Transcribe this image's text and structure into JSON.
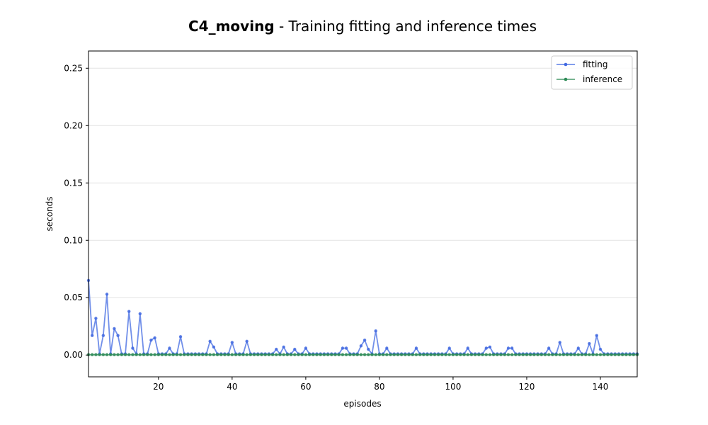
{
  "chart_data": {
    "type": "line",
    "title_bold": "C4_moving",
    "title_rest": " - Training fitting and inference times",
    "xlabel": "episodes",
    "ylabel": "seconds",
    "xlim": [
      1,
      150
    ],
    "ylim": [
      -0.019,
      0.265
    ],
    "xticks": [
      20,
      40,
      60,
      80,
      100,
      120,
      140
    ],
    "yticks": [
      0.0,
      0.05,
      0.1,
      0.15,
      0.2,
      0.25
    ],
    "ytick_labels": [
      "0.00",
      "0.05",
      "0.10",
      "0.15",
      "0.20",
      "0.25"
    ],
    "grid": "horizontal",
    "legend_position": "upper right",
    "series": [
      {
        "name": "fitting",
        "color": "#4169e1",
        "values": [
          0.065,
          0.017,
          0.032,
          0.001,
          0.017,
          0.053,
          0.001,
          0.023,
          0.017,
          0.001,
          0.001,
          0.038,
          0.006,
          0.001,
          0.036,
          0.001,
          0.001,
          0.013,
          0.015,
          0.001,
          0.001,
          0.001,
          0.006,
          0.001,
          0.001,
          0.016,
          0.001,
          0.001,
          0.001,
          0.001,
          0.001,
          0.001,
          0.001,
          0.012,
          0.007,
          0.001,
          0.001,
          0.001,
          0.001,
          0.011,
          0.001,
          0.001,
          0.001,
          0.012,
          0.001,
          0.001,
          0.001,
          0.001,
          0.001,
          0.001,
          0.001,
          0.005,
          0.001,
          0.007,
          0.001,
          0.001,
          0.005,
          0.001,
          0.001,
          0.006,
          0.001,
          0.001,
          0.001,
          0.001,
          0.001,
          0.001,
          0.001,
          0.001,
          0.001,
          0.006,
          0.006,
          0.001,
          0.001,
          0.001,
          0.008,
          0.013,
          0.005,
          0.001,
          0.021,
          0.001,
          0.001,
          0.006,
          0.001,
          0.001,
          0.001,
          0.001,
          0.001,
          0.001,
          0.001,
          0.006,
          0.001,
          0.001,
          0.001,
          0.001,
          0.001,
          0.001,
          0.001,
          0.001,
          0.006,
          0.001,
          0.001,
          0.001,
          0.001,
          0.006,
          0.001,
          0.001,
          0.001,
          0.001,
          0.006,
          0.007,
          0.001,
          0.001,
          0.001,
          0.001,
          0.006,
          0.006,
          0.001,
          0.001,
          0.001,
          0.001,
          0.001,
          0.001,
          0.001,
          0.001,
          0.001,
          0.006,
          0.001,
          0.001,
          0.011,
          0.001,
          0.001,
          0.001,
          0.001,
          0.006,
          0.001,
          0.001,
          0.01,
          0.001,
          0.017,
          0.005,
          0.001,
          0.001,
          0.001,
          0.001,
          0.001,
          0.001,
          0.001,
          0.001,
          0.001,
          0.001
        ]
      },
      {
        "name": "inference",
        "color": "#2e8b57",
        "values": [
          0.0003,
          0.0003,
          0.0003,
          0.0003,
          0.0003,
          0.0003,
          0.0003,
          0.0003,
          0.0003,
          0.0003,
          0.0003,
          0.0003,
          0.0003,
          0.0003,
          0.0003,
          0.0003,
          0.0003,
          0.0003,
          0.0003,
          0.0003,
          0.0003,
          0.0003,
          0.0003,
          0.0003,
          0.0003,
          0.0003,
          0.0003,
          0.0003,
          0.0003,
          0.0003,
          0.0003,
          0.0003,
          0.0003,
          0.0003,
          0.0003,
          0.0003,
          0.0003,
          0.0003,
          0.0003,
          0.0003,
          0.0003,
          0.0003,
          0.0003,
          0.0003,
          0.0003,
          0.0003,
          0.0003,
          0.0003,
          0.0003,
          0.0003,
          0.0003,
          0.0003,
          0.0003,
          0.0003,
          0.0003,
          0.0003,
          0.0003,
          0.0003,
          0.0003,
          0.0003,
          0.0003,
          0.0003,
          0.0003,
          0.0003,
          0.0003,
          0.0003,
          0.0003,
          0.0003,
          0.0003,
          0.0003,
          0.0003,
          0.0003,
          0.0003,
          0.0003,
          0.0003,
          0.0003,
          0.0003,
          0.0003,
          0.0003,
          0.0003,
          0.0003,
          0.0003,
          0.0003,
          0.0003,
          0.0003,
          0.0003,
          0.0003,
          0.0003,
          0.0003,
          0.0003,
          0.0003,
          0.0003,
          0.0003,
          0.0003,
          0.0003,
          0.0003,
          0.0003,
          0.0003,
          0.0003,
          0.0003,
          0.0003,
          0.0003,
          0.0003,
          0.0003,
          0.0003,
          0.0003,
          0.0003,
          0.0003,
          0.0003,
          0.0003,
          0.0003,
          0.0003,
          0.0003,
          0.0003,
          0.0003,
          0.0003,
          0.0003,
          0.0003,
          0.0003,
          0.0003,
          0.0003,
          0.0003,
          0.0003,
          0.0003,
          0.0003,
          0.0003,
          0.0003,
          0.0003,
          0.0003,
          0.0003,
          0.0003,
          0.0003,
          0.0003,
          0.0003,
          0.0003,
          0.0003,
          0.0003,
          0.0003,
          0.0003,
          0.0003,
          0.0003,
          0.0003,
          0.0003,
          0.0003,
          0.0003,
          0.0003,
          0.0003,
          0.0003,
          0.0003,
          0.0003
        ]
      }
    ]
  }
}
